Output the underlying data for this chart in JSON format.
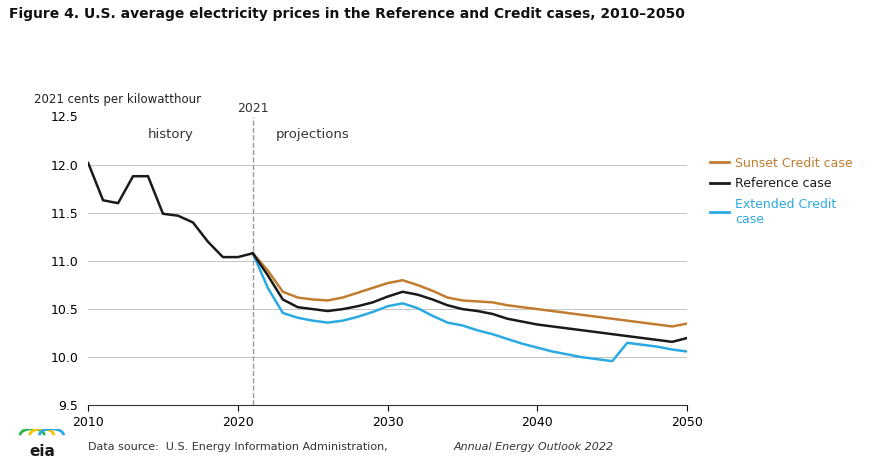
{
  "title": "Figure 4. U.S. average electricity prices in the Reference and Credit cases, 2010–2050",
  "ylabel": "2021 cents per kilowatthour",
  "ylim": [
    9.5,
    12.5
  ],
  "xlim": [
    2010,
    2050
  ],
  "vline_x": 2021,
  "history_label": "history",
  "projections_label": "projections",
  "vline_label": "2021",
  "footnote_plain": "Data source:  U.S. Energy Information Administration, ",
  "footnote_italic": "Annual Energy Outlook 2022",
  "background_color": "#ffffff",
  "grid_color": "#bbbbbb",
  "reference_color": "#1a1a1a",
  "sunset_color": "#c07d30",
  "extended_color": "#2baae2",
  "legend_entries": [
    "Sunset Credit case",
    "Reference case",
    "Extended Credit\ncase"
  ],
  "years_history": [
    2010,
    2011,
    2012,
    2013,
    2014,
    2015,
    2016,
    2017,
    2018,
    2019,
    2020,
    2021
  ],
  "reference_history": [
    12.02,
    11.63,
    11.6,
    11.88,
    11.88,
    11.49,
    11.47,
    11.4,
    11.2,
    11.04,
    11.04,
    11.08
  ],
  "years_projection": [
    2021,
    2022,
    2023,
    2024,
    2025,
    2026,
    2027,
    2028,
    2029,
    2030,
    2031,
    2032,
    2033,
    2034,
    2035,
    2036,
    2037,
    2038,
    2039,
    2040,
    2041,
    2042,
    2043,
    2044,
    2045,
    2046,
    2047,
    2048,
    2049,
    2050
  ],
  "reference_projection": [
    11.08,
    10.85,
    10.6,
    10.52,
    10.5,
    10.48,
    10.5,
    10.53,
    10.57,
    10.63,
    10.68,
    10.65,
    10.6,
    10.54,
    10.5,
    10.48,
    10.45,
    10.4,
    10.37,
    10.34,
    10.32,
    10.3,
    10.28,
    10.26,
    10.24,
    10.22,
    10.2,
    10.18,
    10.16,
    10.2
  ],
  "sunset_projection": [
    11.08,
    10.9,
    10.68,
    10.62,
    10.6,
    10.59,
    10.62,
    10.67,
    10.72,
    10.77,
    10.8,
    10.75,
    10.69,
    10.62,
    10.59,
    10.58,
    10.57,
    10.54,
    10.52,
    10.5,
    10.48,
    10.46,
    10.44,
    10.42,
    10.4,
    10.38,
    10.36,
    10.34,
    10.32,
    10.35
  ],
  "extended_projection": [
    11.08,
    10.72,
    10.46,
    10.41,
    10.38,
    10.36,
    10.38,
    10.42,
    10.47,
    10.53,
    10.56,
    10.51,
    10.43,
    10.36,
    10.33,
    10.28,
    10.24,
    10.19,
    10.14,
    10.1,
    10.06,
    10.03,
    10.0,
    9.98,
    9.96,
    10.15,
    10.13,
    10.11,
    10.08,
    10.06
  ]
}
